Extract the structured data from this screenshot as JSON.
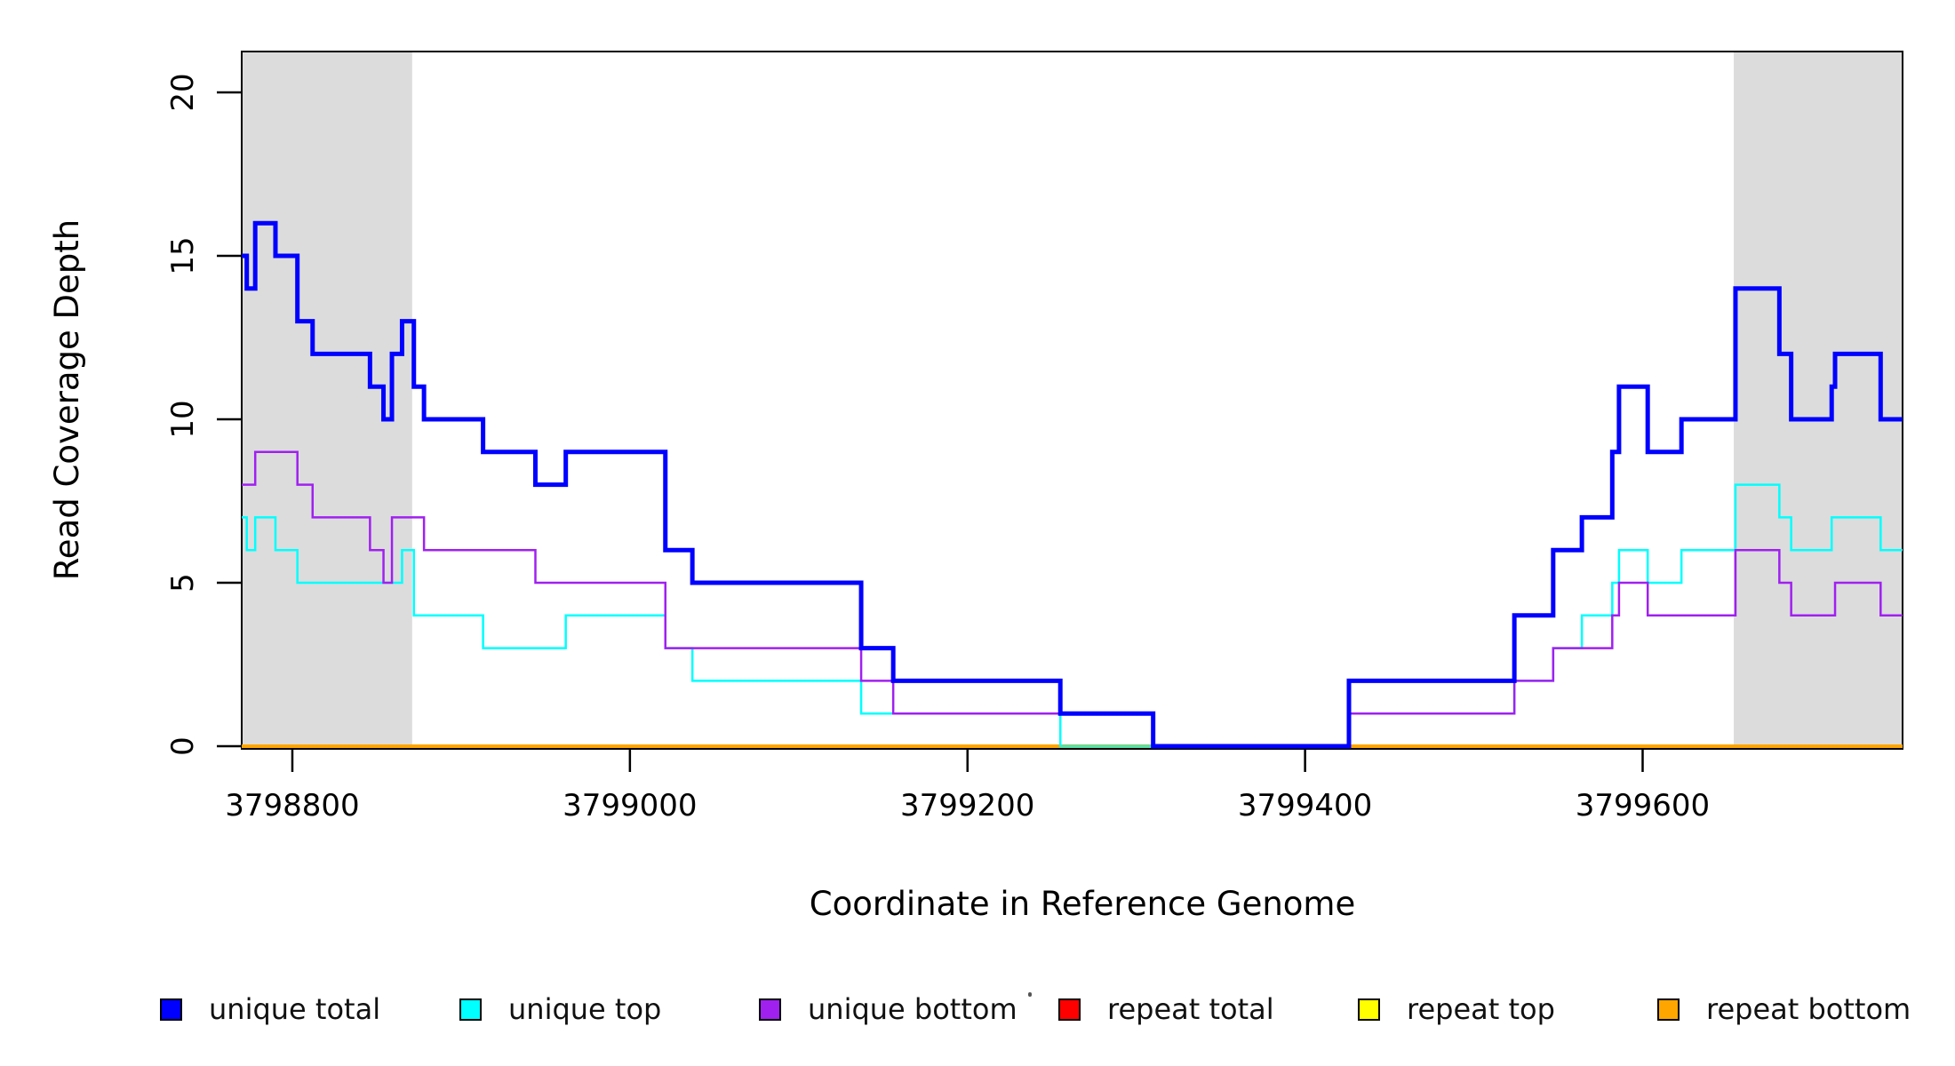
{
  "chart_data": {
    "type": "line",
    "subtype": "step-coverage",
    "title": "",
    "xlabel": "Coordinate in Reference Genome",
    "ylabel": "Read Coverage Depth",
    "xlim": [
      3798770,
      3799754
    ],
    "ylim": [
      0,
      21.3
    ],
    "xticks": [
      3798800,
      3799000,
      3799200,
      3799400,
      3799600
    ],
    "yticks": [
      0,
      5,
      10,
      15,
      20
    ],
    "grid": false,
    "legend_position": "bottom",
    "shaded_region_color": "#DCDCDC",
    "shaded_regions": [
      [
        3798770,
        3798871
      ],
      [
        3799654,
        3799754
      ]
    ],
    "series": [
      {
        "name": "unique total",
        "color": "#0000FF",
        "points": [
          [
            3798770,
            15
          ],
          [
            3798773,
            14
          ],
          [
            3798778,
            16
          ],
          [
            3798790,
            15
          ],
          [
            3798803,
            13
          ],
          [
            3798812,
            12
          ],
          [
            3798846,
            11
          ],
          [
            3798854,
            10
          ],
          [
            3798859,
            12
          ],
          [
            3798865,
            13
          ],
          [
            3798872,
            11
          ],
          [
            3798878,
            10
          ],
          [
            3798913,
            9
          ],
          [
            3798944,
            8
          ],
          [
            3798962,
            9
          ],
          [
            3799021,
            6
          ],
          [
            3799037,
            5
          ],
          [
            3799137,
            3
          ],
          [
            3799156,
            2
          ],
          [
            3799255,
            1
          ],
          [
            3799310,
            0
          ],
          [
            3799426,
            2
          ],
          [
            3799524,
            4
          ],
          [
            3799547,
            6
          ],
          [
            3799564,
            7
          ],
          [
            3799582,
            9
          ],
          [
            3799586,
            11
          ],
          [
            3799603,
            9
          ],
          [
            3799623,
            10
          ],
          [
            3799655,
            14
          ],
          [
            3799681,
            12
          ],
          [
            3799688,
            10
          ],
          [
            3799712,
            11
          ],
          [
            3799714,
            12
          ],
          [
            3799741,
            10
          ]
        ]
      },
      {
        "name": "unique top",
        "color": "#00FFFF",
        "points": [
          [
            3798770,
            7
          ],
          [
            3798773,
            6
          ],
          [
            3798778,
            7
          ],
          [
            3798790,
            6
          ],
          [
            3798803,
            5
          ],
          [
            3798865,
            6
          ],
          [
            3798872,
            4
          ],
          [
            3798913,
            3
          ],
          [
            3798962,
            4
          ],
          [
            3799021,
            3
          ],
          [
            3799037,
            2
          ],
          [
            3799137,
            1
          ],
          [
            3799255,
            0
          ],
          [
            3799426,
            1
          ],
          [
            3799524,
            2
          ],
          [
            3799547,
            3
          ],
          [
            3799564,
            4
          ],
          [
            3799582,
            5
          ],
          [
            3799586,
            6
          ],
          [
            3799603,
            5
          ],
          [
            3799623,
            6
          ],
          [
            3799655,
            8
          ],
          [
            3799681,
            7
          ],
          [
            3799688,
            6
          ],
          [
            3799712,
            7
          ],
          [
            3799741,
            6
          ]
        ]
      },
      {
        "name": "unique bottom",
        "color": "#A020F0",
        "points": [
          [
            3798770,
            8
          ],
          [
            3798778,
            9
          ],
          [
            3798803,
            8
          ],
          [
            3798812,
            7
          ],
          [
            3798846,
            6
          ],
          [
            3798854,
            5
          ],
          [
            3798859,
            7
          ],
          [
            3798878,
            6
          ],
          [
            3798944,
            5
          ],
          [
            3799021,
            3
          ],
          [
            3799137,
            2
          ],
          [
            3799156,
            1
          ],
          [
            3799310,
            0
          ],
          [
            3799426,
            1
          ],
          [
            3799524,
            2
          ],
          [
            3799547,
            3
          ],
          [
            3799582,
            4
          ],
          [
            3799586,
            5
          ],
          [
            3799603,
            4
          ],
          [
            3799655,
            6
          ],
          [
            3799681,
            5
          ],
          [
            3799688,
            4
          ],
          [
            3799714,
            5
          ],
          [
            3799741,
            4
          ]
        ]
      },
      {
        "name": "repeat total",
        "color": "#FF0000",
        "points": [
          [
            3798770,
            0
          ]
        ]
      },
      {
        "name": "repeat top",
        "color": "#FFFF00",
        "points": [
          [
            3798770,
            0
          ]
        ]
      },
      {
        "name": "repeat bottom",
        "color": "#FFA500",
        "points": [
          [
            3798770,
            0
          ]
        ]
      }
    ]
  },
  "legend": {
    "items": [
      {
        "label": "unique total",
        "color": "#0000FF"
      },
      {
        "label": "unique top",
        "color": "#00FFFF"
      },
      {
        "label": "unique bottom",
        "color": "#A020F0"
      },
      {
        "label": "repeat total",
        "color": "#FF0000"
      },
      {
        "label": "repeat top",
        "color": "#FFFF00"
      },
      {
        "label": "repeat bottom",
        "color": "#FFA500"
      }
    ]
  }
}
